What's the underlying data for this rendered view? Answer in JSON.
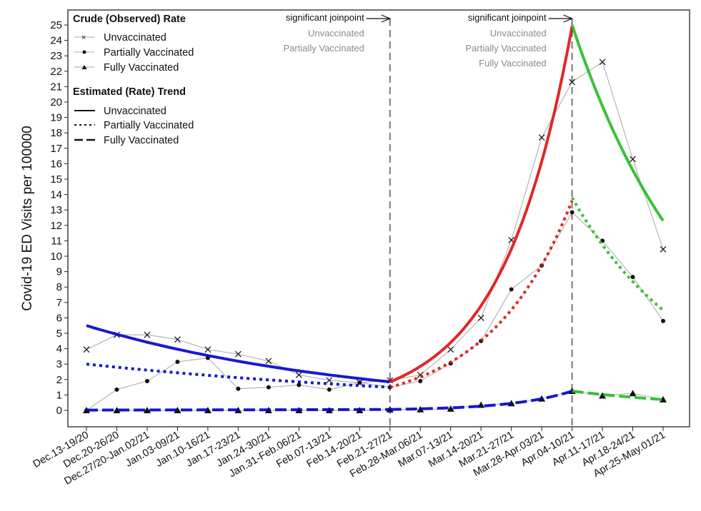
{
  "chart_data": {
    "type": "line",
    "xlabel": "",
    "ylabel": "Covid-19 ED Visits per 100000",
    "ylim": [
      0,
      25
    ],
    "yticks": [
      0,
      1,
      2,
      3,
      4,
      5,
      6,
      7,
      8,
      9,
      10,
      11,
      12,
      13,
      14,
      15,
      16,
      17,
      18,
      19,
      20,
      21,
      22,
      23,
      24,
      25
    ],
    "grid": false,
    "legend_placement": "top-left",
    "categories": [
      "Dec.13-19/20",
      "Dec.20-26/20",
      "Dec.27/20-Jan.02/21",
      "Jan.03-09/21",
      "Jan.10-16/21",
      "Jan.17-23/21",
      "Jan.24-30/21",
      "Jan.31-Feb.06/21",
      "Feb.07-13/21",
      "Feb.14-20/21",
      "Feb.21-27/21",
      "Feb.28-Mar.06/21",
      "Mar.07-13/21",
      "Mar.14-20/21",
      "Mar.21-27/21",
      "Mar.28-Apr.03/21",
      "Apr.04-10/21",
      "Apr.11-17/21",
      "Apr.18-24/21",
      "Apr.25-May.01/21"
    ],
    "crude_series": [
      {
        "name": "Unvaccinated",
        "marker": "x",
        "values": [
          3.95,
          4.9,
          4.9,
          4.6,
          3.95,
          3.65,
          3.2,
          2.3,
          1.95,
          1.8,
          1.95,
          2.3,
          3.95,
          6.0,
          11.05,
          17.7,
          21.3,
          22.6,
          16.3,
          10.45
        ]
      },
      {
        "name": "Partially Vaccinated",
        "marker": "dot",
        "values": [
          0.0,
          1.35,
          1.9,
          3.15,
          3.4,
          1.4,
          1.5,
          1.65,
          1.35,
          1.8,
          1.5,
          1.9,
          3.05,
          4.5,
          7.85,
          9.4,
          12.85,
          11.0,
          8.65,
          5.8
        ]
      },
      {
        "name": "Fully Vaccinated",
        "marker": "triangle",
        "values": [
          0.0,
          0.0,
          0.0,
          0.0,
          0.0,
          0.0,
          0.0,
          0.0,
          0.0,
          0.0,
          0.05,
          0.05,
          0.1,
          0.35,
          0.45,
          0.75,
          1.25,
          0.95,
          1.1,
          0.7
        ]
      }
    ],
    "trend_series": [
      {
        "name": "Unvaccinated",
        "style": "solid",
        "segments": [
          {
            "from": "Dec.13-19/20",
            "to": "Feb.21-27/21",
            "start": 5.5,
            "end": 1.85,
            "color": "#0000cc"
          },
          {
            "from": "Feb.21-27/21",
            "to": "Apr.04-10/21",
            "start": 1.85,
            "end": 24.9,
            "color": "#dd1111"
          },
          {
            "from": "Apr.04-10/21",
            "to": "Apr.25-May.01/21",
            "start": 25.0,
            "end": 12.3,
            "color": "#22bb22"
          }
        ]
      },
      {
        "name": "Partially Vaccinated",
        "style": "dotted",
        "segments": [
          {
            "from": "Dec.13-19/20",
            "to": "Feb.21-27/21",
            "start": 3.0,
            "end": 1.5,
            "color": "#0000cc"
          },
          {
            "from": "Feb.21-27/21",
            "to": "Apr.04-10/21",
            "start": 1.5,
            "end": 13.6,
            "color": "#dd1111"
          },
          {
            "from": "Apr.04-10/21",
            "to": "Apr.25-May.01/21",
            "start": 13.8,
            "end": 6.5,
            "color": "#22bb22"
          }
        ]
      },
      {
        "name": "Fully Vaccinated",
        "style": "dashed",
        "segments": [
          {
            "from": "Dec.13-19/20",
            "to": "Feb.21-27/21",
            "start": 0.02,
            "end": 0.06,
            "color": "#0000cc"
          },
          {
            "from": "Feb.21-27/21",
            "to": "Apr.04-10/21",
            "start": 0.06,
            "end": 1.25,
            "color": "#0000cc"
          },
          {
            "from": "Apr.04-10/21",
            "to": "Apr.25-May.01/21",
            "start": 1.25,
            "end": 0.7,
            "color": "#22bb22"
          }
        ]
      }
    ],
    "joinpoints": [
      {
        "at": "Feb.21-27/21",
        "label": "significant joinpoint",
        "groups": [
          "Unvaccinated",
          "Partially Vaccinated"
        ]
      },
      {
        "at": "Apr.04-10/21",
        "label": "significant joinpoint",
        "groups": [
          "Unvaccinated",
          "Partially Vaccinated",
          "Fully Vaccinated"
        ]
      }
    ],
    "legend": {
      "crude_title": "Crude (Observed) Rate",
      "crude_items": [
        "Unvaccinated",
        "Partially Vaccinated",
        "Fully Vaccinated"
      ],
      "trend_title": "Estimated (Rate) Trend",
      "trend_items": [
        "Unvaccinated",
        "Partially Vaccinated",
        "Fully Vaccinated"
      ]
    }
  }
}
